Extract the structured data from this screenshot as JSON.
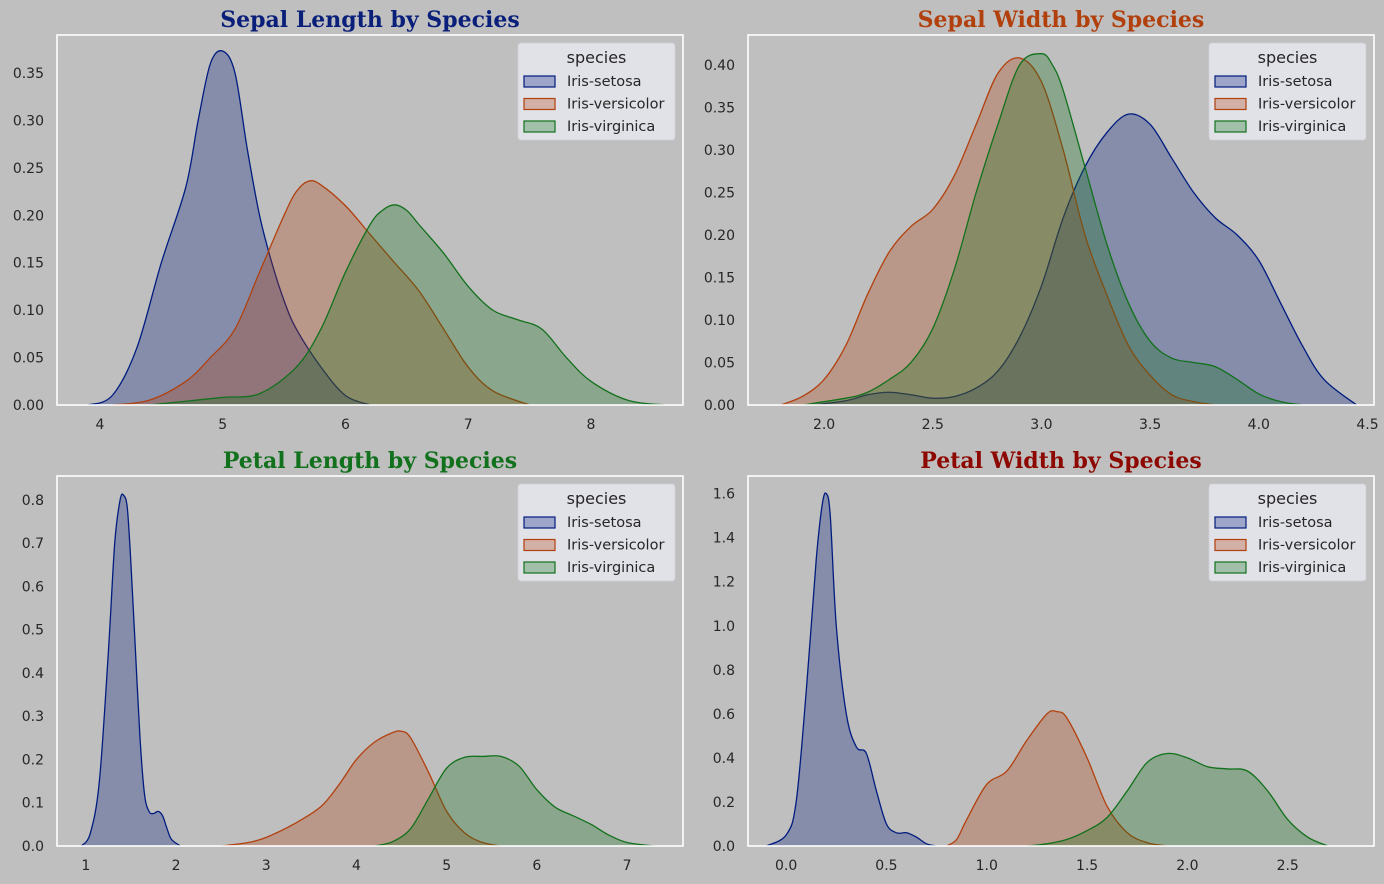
{
  "chart_data": [
    {
      "type": "area",
      "title": "Sepal Length by Species",
      "title_color": "#0a1f7a",
      "xlim": [
        3.65,
        8.75
      ],
      "ylim": [
        0,
        0.39
      ],
      "xticks": [
        4,
        5,
        6,
        7,
        8
      ],
      "xtick_labels": [
        "4",
        "5",
        "6",
        "7",
        "8"
      ],
      "yticks": [
        0,
        0.05,
        0.1,
        0.15,
        0.2,
        0.25,
        0.3,
        0.35
      ],
      "ytick_labels": [
        "0.00",
        "0.05",
        "0.10",
        "0.15",
        "0.20",
        "0.25",
        "0.30",
        "0.35"
      ],
      "grid": false,
      "legend": {
        "title": "species",
        "placement": "top-right"
      },
      "series": [
        {
          "name": "Iris-setosa",
          "color": "#001c7f",
          "x": [
            3.9,
            4.1,
            4.3,
            4.5,
            4.7,
            4.8,
            4.9,
            5.0,
            5.1,
            5.2,
            5.3,
            5.4,
            5.5,
            5.6,
            5.8,
            6.0,
            6.2
          ],
          "y": [
            0.0,
            0.01,
            0.06,
            0.15,
            0.23,
            0.3,
            0.36,
            0.373,
            0.35,
            0.27,
            0.2,
            0.15,
            0.11,
            0.08,
            0.04,
            0.01,
            0.0
          ]
        },
        {
          "name": "Iris-versicolor",
          "color": "#b1400d",
          "x": [
            4.1,
            4.4,
            4.7,
            4.9,
            5.1,
            5.3,
            5.5,
            5.6,
            5.7,
            5.8,
            6.0,
            6.2,
            6.4,
            6.6,
            6.8,
            7.0,
            7.2,
            7.5
          ],
          "y": [
            0.0,
            0.005,
            0.025,
            0.05,
            0.08,
            0.14,
            0.2,
            0.225,
            0.236,
            0.232,
            0.21,
            0.18,
            0.15,
            0.12,
            0.08,
            0.04,
            0.015,
            0.0
          ]
        },
        {
          "name": "Iris-virginica",
          "color": "#12711c",
          "x": [
            4.4,
            4.7,
            5.0,
            5.3,
            5.6,
            5.8,
            6.0,
            6.2,
            6.3,
            6.4,
            6.5,
            6.6,
            6.8,
            7.0,
            7.2,
            7.4,
            7.6,
            7.8,
            8.0,
            8.3,
            8.6
          ],
          "y": [
            0.0,
            0.004,
            0.008,
            0.012,
            0.04,
            0.08,
            0.14,
            0.19,
            0.205,
            0.211,
            0.205,
            0.19,
            0.16,
            0.125,
            0.1,
            0.09,
            0.08,
            0.05,
            0.025,
            0.005,
            0.0
          ]
        }
      ]
    },
    {
      "type": "area",
      "title": "Sepal Width by Species",
      "title_color": "#b1400d",
      "xlim": [
        1.65,
        4.53
      ],
      "ylim": [
        0,
        0.435
      ],
      "xticks": [
        2.0,
        2.5,
        3.0,
        3.5,
        4.0,
        4.5
      ],
      "xtick_labels": [
        "2.0",
        "2.5",
        "3.0",
        "3.5",
        "4.0",
        "4.5"
      ],
      "yticks": [
        0,
        0.05,
        0.1,
        0.15,
        0.2,
        0.25,
        0.3,
        0.35,
        0.4
      ],
      "ytick_labels": [
        "0.00",
        "0.05",
        "0.10",
        "0.15",
        "0.20",
        "0.25",
        "0.30",
        "0.35",
        "0.40"
      ],
      "grid": false,
      "legend": {
        "title": "species",
        "placement": "top-right"
      },
      "series": [
        {
          "name": "Iris-setosa",
          "color": "#001c7f",
          "x": [
            1.95,
            2.1,
            2.2,
            2.3,
            2.4,
            2.5,
            2.6,
            2.7,
            2.8,
            2.9,
            3.0,
            3.1,
            3.2,
            3.3,
            3.4,
            3.5,
            3.6,
            3.7,
            3.8,
            3.9,
            4.0,
            4.1,
            4.2,
            4.3,
            4.45
          ],
          "y": [
            0.0,
            0.005,
            0.012,
            0.015,
            0.012,
            0.008,
            0.01,
            0.02,
            0.04,
            0.08,
            0.14,
            0.22,
            0.28,
            0.32,
            0.342,
            0.33,
            0.29,
            0.25,
            0.22,
            0.2,
            0.17,
            0.12,
            0.07,
            0.03,
            0.0
          ]
        },
        {
          "name": "Iris-versicolor",
          "color": "#b1400d",
          "x": [
            1.8,
            1.9,
            2.0,
            2.1,
            2.2,
            2.3,
            2.4,
            2.5,
            2.6,
            2.7,
            2.8,
            2.9,
            3.0,
            3.1,
            3.2,
            3.3,
            3.4,
            3.5,
            3.6,
            3.7,
            3.8
          ],
          "y": [
            0.0,
            0.01,
            0.03,
            0.07,
            0.13,
            0.18,
            0.21,
            0.23,
            0.27,
            0.33,
            0.39,
            0.408,
            0.38,
            0.3,
            0.2,
            0.13,
            0.07,
            0.035,
            0.012,
            0.004,
            0.0
          ]
        },
        {
          "name": "Iris-virginica",
          "color": "#12711c",
          "x": [
            1.9,
            2.1,
            2.2,
            2.3,
            2.4,
            2.5,
            2.6,
            2.7,
            2.8,
            2.9,
            3.0,
            3.05,
            3.1,
            3.2,
            3.3,
            3.4,
            3.5,
            3.6,
            3.7,
            3.8,
            3.9,
            4.0,
            4.1,
            4.2
          ],
          "y": [
            0.0,
            0.008,
            0.015,
            0.03,
            0.05,
            0.09,
            0.16,
            0.25,
            0.33,
            0.4,
            0.413,
            0.4,
            0.37,
            0.28,
            0.19,
            0.12,
            0.075,
            0.055,
            0.05,
            0.045,
            0.03,
            0.013,
            0.004,
            0.0
          ]
        }
      ]
    },
    {
      "type": "area",
      "title": "Petal Length by Species",
      "title_color": "#12711c",
      "xlim": [
        0.68,
        7.62
      ],
      "ylim": [
        0,
        0.855
      ],
      "xticks": [
        1,
        2,
        3,
        4,
        5,
        6,
        7
      ],
      "xtick_labels": [
        "1",
        "2",
        "3",
        "4",
        "5",
        "6",
        "7"
      ],
      "yticks": [
        0,
        0.1,
        0.2,
        0.3,
        0.4,
        0.5,
        0.6,
        0.7,
        0.8
      ],
      "ytick_labels": [
        "0.0",
        "0.1",
        "0.2",
        "0.3",
        "0.4",
        "0.5",
        "0.6",
        "0.7",
        "0.8"
      ],
      "grid": false,
      "legend": {
        "title": "species",
        "placement": "top-right"
      },
      "series": [
        {
          "name": "Iris-setosa",
          "color": "#001c7f",
          "x": [
            0.95,
            1.05,
            1.15,
            1.25,
            1.32,
            1.38,
            1.42,
            1.46,
            1.5,
            1.55,
            1.6,
            1.65,
            1.7,
            1.75,
            1.8,
            1.85,
            1.9,
            1.95,
            2.05
          ],
          "y": [
            0.0,
            0.03,
            0.15,
            0.45,
            0.7,
            0.8,
            0.81,
            0.78,
            0.65,
            0.45,
            0.25,
            0.12,
            0.08,
            0.075,
            0.08,
            0.07,
            0.04,
            0.015,
            0.0
          ]
        },
        {
          "name": "Iris-versicolor",
          "color": "#b1400d",
          "x": [
            2.5,
            2.8,
            3.0,
            3.3,
            3.6,
            3.8,
            4.0,
            4.2,
            4.4,
            4.5,
            4.6,
            4.8,
            5.0,
            5.2,
            5.4,
            5.6
          ],
          "y": [
            0.0,
            0.008,
            0.02,
            0.05,
            0.09,
            0.14,
            0.2,
            0.24,
            0.262,
            0.265,
            0.25,
            0.17,
            0.08,
            0.03,
            0.008,
            0.0
          ]
        },
        {
          "name": "Iris-virginica",
          "color": "#12711c",
          "x": [
            4.2,
            4.4,
            4.6,
            4.8,
            5.0,
            5.2,
            5.4,
            5.6,
            5.8,
            6.0,
            6.2,
            6.4,
            6.6,
            6.8,
            7.0,
            7.3
          ],
          "y": [
            0.0,
            0.01,
            0.04,
            0.11,
            0.18,
            0.205,
            0.207,
            0.207,
            0.185,
            0.13,
            0.09,
            0.07,
            0.05,
            0.025,
            0.008,
            0.0
          ]
        }
      ]
    },
    {
      "type": "area",
      "title": "Petal Width by Species",
      "title_color": "#8c0800",
      "xlim": [
        -0.19,
        2.93
      ],
      "ylim": [
        0,
        1.68
      ],
      "xticks": [
        0.0,
        0.5,
        1.0,
        1.5,
        2.0,
        2.5
      ],
      "xtick_labels": [
        "0.0",
        "0.5",
        "1.0",
        "1.5",
        "2.0",
        "2.5"
      ],
      "yticks": [
        0,
        0.2,
        0.4,
        0.6,
        0.8,
        1.0,
        1.2,
        1.4,
        1.6
      ],
      "ytick_labels": [
        "0.0",
        "0.2",
        "0.4",
        "0.6",
        "0.8",
        "1.0",
        "1.2",
        "1.4",
        "1.6"
      ],
      "grid": false,
      "legend": {
        "title": "species",
        "placement": "top-right"
      },
      "series": [
        {
          "name": "Iris-setosa",
          "color": "#001c7f",
          "x": [
            -0.1,
            0.0,
            0.05,
            0.1,
            0.15,
            0.18,
            0.2,
            0.22,
            0.25,
            0.3,
            0.35,
            0.4,
            0.45,
            0.5,
            0.55,
            0.6,
            0.65,
            0.7,
            0.75
          ],
          "y": [
            0.0,
            0.05,
            0.2,
            0.7,
            1.3,
            1.55,
            1.6,
            1.5,
            1.0,
            0.6,
            0.45,
            0.42,
            0.25,
            0.1,
            0.06,
            0.06,
            0.04,
            0.01,
            0.0
          ]
        },
        {
          "name": "Iris-versicolor",
          "color": "#b1400d",
          "x": [
            0.8,
            0.85,
            0.9,
            1.0,
            1.1,
            1.2,
            1.3,
            1.35,
            1.4,
            1.5,
            1.6,
            1.7,
            1.8,
            1.9
          ],
          "y": [
            0.0,
            0.03,
            0.12,
            0.28,
            0.34,
            0.48,
            0.6,
            0.61,
            0.58,
            0.4,
            0.18,
            0.06,
            0.015,
            0.0
          ]
        },
        {
          "name": "Iris-virginica",
          "color": "#12711c",
          "x": [
            1.2,
            1.3,
            1.4,
            1.5,
            1.6,
            1.7,
            1.8,
            1.9,
            2.0,
            2.1,
            2.2,
            2.3,
            2.4,
            2.5,
            2.6,
            2.7
          ],
          "y": [
            0.0,
            0.01,
            0.03,
            0.07,
            0.13,
            0.25,
            0.38,
            0.42,
            0.4,
            0.36,
            0.35,
            0.34,
            0.25,
            0.12,
            0.04,
            0.0
          ]
        }
      ]
    }
  ]
}
